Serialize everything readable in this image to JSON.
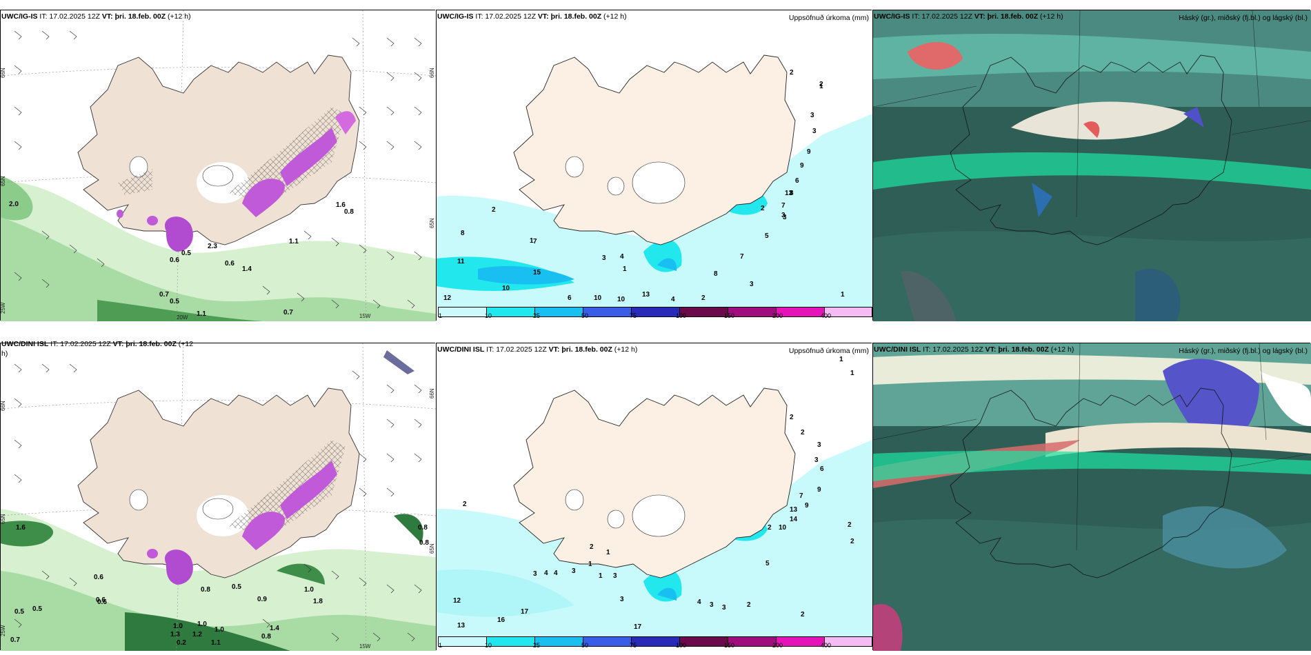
{
  "panels": {
    "top_wind": {
      "model": "UWC/IG-IS",
      "it_label": "IT:",
      "it": "17.02.2025 12Z",
      "vt_label": "VT:",
      "vt": "þri. 18.feb. 00Z",
      "lead": "(+12 h)"
    },
    "top_precip": {
      "model": "UWC/IG-IS",
      "it_label": "IT:",
      "it": "17.02.2025 12Z",
      "vt_label": "VT:",
      "vt": "þri. 18.feb. 00Z",
      "lead": "(+12 h)",
      "right": "Uppsöfnuð úrkoma (mm)"
    },
    "top_cloud": {
      "model": "UWC/IG-IS",
      "it_label": "IT:",
      "it": "17.02.2025 12Z",
      "vt_label": "VT:",
      "vt": "þri. 18.feb. 00Z",
      "lead": "(+12 h)",
      "right": "Háský (gr.), miðský (fj.bl.) og lágský (bl.)"
    },
    "bot_wind": {
      "model": "UWC/DINI ISL",
      "it_label": "IT:",
      "it": "17.02.2025 12Z",
      "vt_label": "VT:",
      "vt": "þri. 18.feb. 00Z",
      "lead": "(+12",
      "lead2": "h)"
    },
    "bot_precip": {
      "model": "UWC/DINI ISL",
      "it_label": "IT:",
      "it": "17.02.2025 12Z",
      "vt_label": "VT:",
      "vt": "þri. 18.feb. 00Z",
      "lead": "(+12 h)",
      "right": "Uppsöfnuð úrkoma (mm)"
    },
    "bot_cloud": {
      "model": "UWC/DINI ISL",
      "it_label": "IT:",
      "it": "17.02.2025 12Z",
      "vt_label": "VT:",
      "vt": "þri. 18.feb. 00Z",
      "lead": "(+12 h)",
      "right": "Háský (gr.), miðský (fj.bl.) og lágský (bl.)"
    }
  },
  "gridlabels": {
    "lat66": "66N",
    "lat65": "65N",
    "lat64": "64N",
    "lon25": "25W",
    "lon20": "20W",
    "lon15": "15W"
  },
  "colorbar": {
    "ticks": [
      "1",
      "10",
      "25",
      "50",
      "75",
      "100",
      "150",
      "200",
      "400"
    ],
    "colors": [
      "#ccfafc",
      "#22e8ee",
      "#18bff0",
      "#3a5de8",
      "#2a2ab8",
      "#6a0a4a",
      "#a00e7e",
      "#e414b8",
      "#f4bcf2"
    ]
  },
  "precip_top": [
    "2",
    "1",
    "2",
    "3",
    "3",
    "9",
    "9",
    "6",
    "8",
    "13",
    "7",
    "3",
    "2",
    "3",
    "5",
    "7",
    "8",
    "2",
    "11",
    "15",
    "3",
    "1",
    "6",
    "10",
    "10",
    "13",
    "3",
    "4",
    "2",
    "1",
    "12",
    "4"
  ],
  "precip_bot": [
    "1",
    "1",
    "2",
    "3",
    "3",
    "6",
    "7",
    "9",
    "9",
    "13",
    "14",
    "10",
    "2",
    "2",
    "5",
    "2",
    "1",
    "3",
    "4",
    "4",
    "3",
    "1",
    "3",
    "4",
    "3",
    "3",
    "2",
    "3",
    "12",
    "17",
    "16",
    "13",
    "17",
    "2"
  ],
  "wind_top": [
    "2.0",
    "0.5",
    "0.6",
    "0.7",
    "0.5",
    "1.1",
    "0.7",
    "0.6",
    "1.4",
    "1.1",
    "2.3",
    "1.6",
    "0.8"
  ],
  "wind_bot": [
    "1.6",
    "0.6",
    "0.6",
    "0.5",
    "0.5",
    "0.7",
    "1.0",
    "1.3",
    "1.0",
    "1.2",
    "1.0",
    "0.9",
    "0.5",
    "0.8",
    "1.4",
    "0.8",
    "0.2",
    "1.1",
    "1.0",
    "0.6",
    "0.8",
    "1.8",
    "0.8"
  ]
}
